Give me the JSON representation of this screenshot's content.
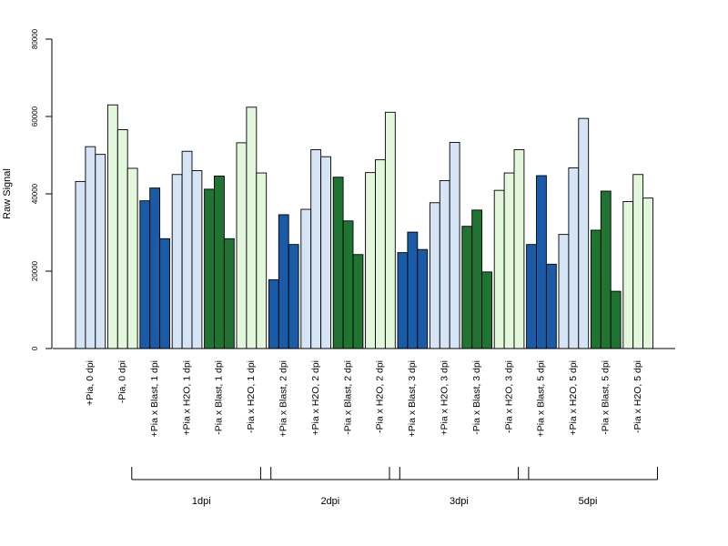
{
  "chart_data": {
    "type": "bar",
    "ylabel": "Raw Signal",
    "ylim": [
      0,
      80000
    ],
    "yticks": [
      0,
      20000,
      40000,
      60000,
      80000
    ],
    "replicates_per_group": 3,
    "categories": [
      "+Pia, 0 dpi",
      "-Pia, 0 dpi",
      "+Pia x Blast, 1 dpi",
      "+Pia x H2O, 1 dpi",
      "-Pia x Blast, 1 dpi",
      "-Pia x H2O, 1 dpi",
      "+Pia x Blast, 2 dpi",
      "+Pia x H2O, 2 dpi",
      "-Pia x Blast, 2 dpi",
      "-Pia x H2O, 2 dpi",
      "+Pia x Blast, 3 dpi",
      "+Pia x H2O, 3 dpi",
      "-Pia x Blast, 3 dpi",
      "-Pia x H2O, 3 dpi",
      "+Pia x Blast, 5 dpi",
      "+Pia x H2O, 5 dpi",
      "-Pia x Blast, 5 dpi",
      "-Pia x H2O, 5 dpi"
    ],
    "group_colors": [
      "#d5e5f6",
      "#e3f7dc",
      "#1a5ba8",
      "#d5e5f6",
      "#1f7432",
      "#e3f7dc",
      "#1a5ba8",
      "#d5e5f6",
      "#1f7432",
      "#e3f7dc",
      "#1a5ba8",
      "#d5e5f6",
      "#1f7432",
      "#e3f7dc",
      "#1a5ba8",
      "#d5e5f6",
      "#1f7432",
      "#e3f7dc"
    ],
    "values": [
      [
        43200,
        52200,
        50200
      ],
      [
        63000,
        56600,
        46600
      ],
      [
        38200,
        41500,
        28400
      ],
      [
        45000,
        51000,
        46000
      ],
      [
        41200,
        44600,
        28400
      ],
      [
        53200,
        62400,
        45400
      ],
      [
        17800,
        34600,
        26900
      ],
      [
        36000,
        51400,
        49600
      ],
      [
        44300,
        33000,
        24300
      ],
      [
        45500,
        48800,
        61100
      ],
      [
        24800,
        30100,
        25600
      ],
      [
        37700,
        43400,
        53300
      ],
      [
        31600,
        35800,
        19800
      ],
      [
        40900,
        45400,
        51400
      ],
      [
        26900,
        44700,
        21800
      ],
      [
        29500,
        46700,
        59500
      ],
      [
        30600,
        40700,
        14800
      ],
      [
        38000,
        45000,
        38900
      ]
    ],
    "brackets": [
      {
        "label": "1dpi",
        "from_group": 2,
        "to_group": 5
      },
      {
        "label": "2dpi",
        "from_group": 6,
        "to_group": 9
      },
      {
        "label": "3dpi",
        "from_group": 10,
        "to_group": 13
      },
      {
        "label": "5dpi",
        "from_group": 14,
        "to_group": 17
      }
    ]
  }
}
